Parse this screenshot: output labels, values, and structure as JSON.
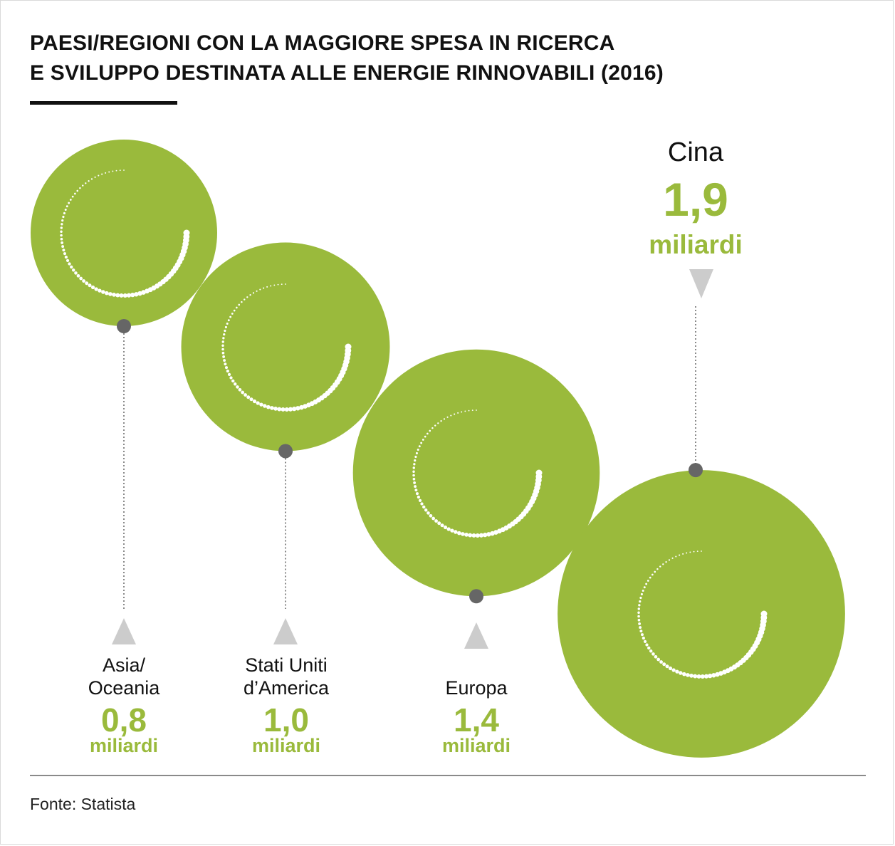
{
  "title_lines": [
    "PAESI/REGIONI CON LA MAGGIORE SPESA IN RICERCA",
    "E SVILUPPO DESTINATA ALLE ENERGIE RINNOVABILI (2016)"
  ],
  "source": "Fonte: Statista",
  "colors": {
    "accent": "#9aba3c",
    "dot": "#666666",
    "connector": "#8a8a8a",
    "arrow": "#cccccc"
  },
  "chart_data": {
    "type": "bubble",
    "unit": "miliardi",
    "items": [
      {
        "region_lines": [
          "Asia/",
          "Oceania"
        ],
        "value": 0.8,
        "value_label": "0,8",
        "unit_label": "miliardi"
      },
      {
        "region_lines": [
          "Stati Uniti",
          "d’America"
        ],
        "value": 1.0,
        "value_label": "1,0",
        "unit_label": "miliardi"
      },
      {
        "region_lines": [
          "Europa"
        ],
        "value": 1.4,
        "value_label": "1,4",
        "unit_label": "miliardi"
      },
      {
        "region_lines": [
          "Cina"
        ],
        "value": 1.9,
        "value_label": "1,9",
        "unit_label": "miliardi"
      }
    ]
  }
}
